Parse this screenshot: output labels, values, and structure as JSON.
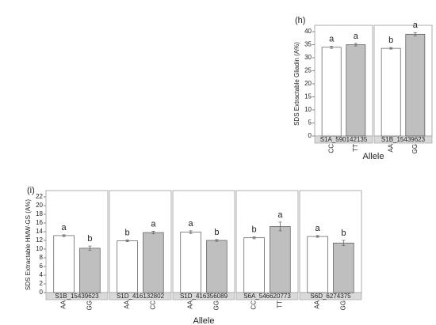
{
  "chart_data": [
    {
      "type": "bar",
      "label": "(h)",
      "y_label": "SDS Extractable Gliadin (A%)",
      "x_label": "Allele",
      "ylim": [
        0,
        40
      ],
      "yticks": [
        0,
        5,
        10,
        15,
        20,
        25,
        30,
        35,
        40
      ],
      "colors": [
        "#ffffff",
        "#bfbfbf"
      ],
      "panels": [
        {
          "name": "S1A_590142135",
          "categories": [
            "CC",
            "TT"
          ],
          "values": [
            34.0,
            35.0
          ],
          "errors": [
            0.4,
            0.5
          ],
          "letters": [
            "a",
            "a"
          ]
        },
        {
          "name": "S1B_15439623",
          "categories": [
            "AA",
            "GG"
          ],
          "values": [
            33.6,
            39.0
          ],
          "errors": [
            0.3,
            0.6
          ],
          "letters": [
            "b",
            "a"
          ]
        }
      ]
    },
    {
      "type": "bar",
      "label": "(i)",
      "y_label": "SDS Extractable HMW-GS (A%)",
      "x_label": "Allele",
      "ylim": [
        0,
        22
      ],
      "yticks": [
        0,
        2,
        4,
        6,
        8,
        10,
        12,
        14,
        16,
        18,
        20,
        22
      ],
      "colors": [
        "#ffffff",
        "#bfbfbf"
      ],
      "panels": [
        {
          "name": "S1B_15439623",
          "categories": [
            "AA",
            "GG"
          ],
          "values": [
            13.1,
            10.2
          ],
          "errors": [
            0.2,
            0.5
          ],
          "letters": [
            "a",
            "b"
          ]
        },
        {
          "name": "S1D_416132802",
          "categories": [
            "AA",
            "CC"
          ],
          "values": [
            11.9,
            13.8
          ],
          "errors": [
            0.2,
            0.3
          ],
          "letters": [
            "b",
            "a"
          ]
        },
        {
          "name": "S1D_416356089",
          "categories": [
            "AA",
            "GG"
          ],
          "values": [
            13.9,
            12.0
          ],
          "errors": [
            0.3,
            0.2
          ],
          "letters": [
            "a",
            "b"
          ]
        },
        {
          "name": "S6A_546620773",
          "categories": [
            "CC",
            "TT"
          ],
          "values": [
            12.6,
            15.2
          ],
          "errors": [
            0.2,
            1.0
          ],
          "letters": [
            "b",
            "a"
          ]
        },
        {
          "name": "S6D_6274375",
          "categories": [
            "AA",
            "GG"
          ],
          "values": [
            12.9,
            11.4
          ],
          "errors": [
            0.2,
            0.6
          ],
          "letters": [
            "a",
            "b"
          ]
        }
      ]
    }
  ]
}
